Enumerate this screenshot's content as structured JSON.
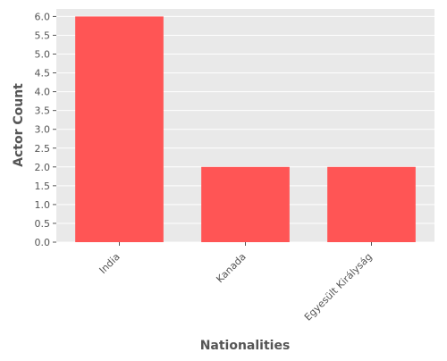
{
  "chart_data": {
    "type": "bar",
    "categories": [
      "India",
      "Kanada",
      "Egyesült Királyság"
    ],
    "values": [
      6,
      2,
      2
    ],
    "title": "",
    "xlabel": "Nationalities",
    "ylabel": "Actor Count",
    "ylim": [
      0,
      6.2
    ],
    "yticks": [
      "0.0",
      "0.5",
      "1.0",
      "1.5",
      "2.0",
      "2.5",
      "3.0",
      "3.5",
      "4.0",
      "4.5",
      "5.0",
      "5.5",
      "6.0"
    ],
    "grid": true,
    "legend": "none",
    "colors": {
      "bar": "#ff5555",
      "plot_background": "#e9e9e9",
      "grid": "#ffffff",
      "text": "#555555"
    }
  }
}
